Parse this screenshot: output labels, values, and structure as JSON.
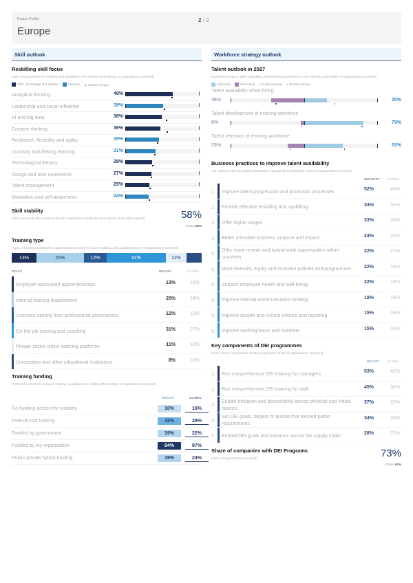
{
  "header": {
    "supertitle": "Region Profile",
    "title": "Europe",
    "page_current": "2",
    "page_sep": " / ",
    "page_total": "2"
  },
  "colors": {
    "skills": "#1e2f5a",
    "attitudes": "#2e86c1",
    "improving": "#9dcbe6",
    "worsening": "#a584b5",
    "accent": "#1e3766"
  },
  "left": {
    "section_title": "Skill outlook",
    "reskilling": {
      "title": "Reskilling skill focus",
      "subtitle": "Skills most prioritized for reskilling and upskilling in the next five years (share of organizations surveyed)",
      "legend": [
        "Skills, knowledge and abilities",
        "Attitudes",
        "Global average"
      ],
      "items": [
        {
          "label": "Analytical thinking",
          "value": 49,
          "type": "skills",
          "global": 48
        },
        {
          "label": "Leadership and social influence",
          "value": 39,
          "type": "attitudes",
          "global": 40
        },
        {
          "label": "AI and big data",
          "value": 38,
          "type": "skills",
          "global": 42
        },
        {
          "label": "Creative thinking",
          "value": 36,
          "type": "skills",
          "global": 43
        },
        {
          "label": "Resilience, flexibility and agility",
          "value": 35,
          "type": "attitudes",
          "global": 33
        },
        {
          "label": "Curiosity and lifelong learning",
          "value": 31,
          "type": "attitudes",
          "global": 30
        },
        {
          "label": "Technological literacy",
          "value": 28,
          "type": "skills",
          "global": 28
        },
        {
          "label": "Design and user experience",
          "value": 27,
          "type": "skills",
          "global": 26
        },
        {
          "label": "Talent management",
          "value": 25,
          "type": "skills",
          "global": 25
        },
        {
          "label": "Motivation and self-awareness",
          "value": 24,
          "type": "attitudes",
          "global": 24
        }
      ]
    },
    "stability": {
      "title": "Skill stability",
      "subtitle": "Skills required by the workforce that are expected to remain the same (share of all skills required)",
      "value": "58%",
      "global_label": "Global",
      "global_value": "56%"
    },
    "training_type": {
      "title": "Training type",
      "subtitle": "Types of training prioritized by organizations surveyed for future reskilling and upskilling (share of organizations surveyed)",
      "segments": [
        {
          "label": "13%",
          "value": 13,
          "color": "#1e2f5a",
          "text": "#ffffff"
        },
        {
          "label": "25%",
          "value": 25,
          "color": "#a9d0ea",
          "text": "#1e3766"
        },
        {
          "label": "12%",
          "value": 12,
          "color": "#2a5a94",
          "text": "#ffffff"
        },
        {
          "label": "31%",
          "value": 31,
          "color": "#2e96d6",
          "text": "#ffffff"
        },
        {
          "label": "11%",
          "value": 11,
          "color": "#e3eef6",
          "text": "#1e3766"
        },
        {
          "label": "",
          "value": 8,
          "color": "#2a4f85",
          "text": "#ffffff"
        }
      ],
      "col_roles": "ROLES",
      "col_region": "REGION",
      "col_global": "GLOBAL",
      "rows": [
        {
          "label": "Employer-sponsored apprenticeships",
          "region": "13%",
          "global": "15%"
        },
        {
          "label": "Internal training departments",
          "region": "25%",
          "global": "24%"
        },
        {
          "label": "Licensed training from professional associations",
          "region": "12%",
          "global": "13%"
        },
        {
          "label": "On-the-job training and coaching",
          "region": "31%",
          "global": "27%"
        },
        {
          "label": "Private-sector online-learning platforms",
          "region": "11%",
          "global": "12%"
        },
        {
          "label": "Universities and other educational institutions",
          "region": "8%",
          "global": "10%"
        }
      ]
    },
    "funding": {
      "title": "Training funding",
      "subtitle": "Preferred sources of funding for training, upskilling and reskilling efforts (share of organizations surveyed)",
      "col_region": "REGION",
      "col_global": "GLOBAL",
      "rows": [
        {
          "label": "Co-funding across the industry",
          "region": "10%",
          "global": "16%",
          "shade": "#c6e0f2",
          "text": "#1e3766"
        },
        {
          "label": "Free-of-cost training",
          "region": "32%",
          "global": "28%",
          "shade": "#6fb2e0",
          "text": "#1e3766"
        },
        {
          "label": "Funded by government",
          "region": "19%",
          "global": "22%",
          "shade": "#b2d6ee",
          "text": "#1e3766"
        },
        {
          "label": "Funded by my organization",
          "region": "94%",
          "global": "87%",
          "shade": "#1e3766",
          "text": "#ffffff"
        },
        {
          "label": "Public-private hybrid funding",
          "region": "19%",
          "global": "24%",
          "shade": "#b2d6ee",
          "text": "#1e3766"
        }
      ]
    }
  },
  "right": {
    "section_title": "Workforce strategy outlook",
    "talent": {
      "title": "Talent outlook in 2027",
      "subtitle": "Expected change in talent availability, development and retention in the next five years (share of organizations surveyed)",
      "legend": [
        "Improving",
        "Worsening",
        "Global average",
        "Global average"
      ],
      "items": [
        {
          "label": "Talent availability when hiring",
          "worsening": 46,
          "improving": 30,
          "worsening_label": "46%",
          "improving_label": "30%",
          "global_worsening": 40,
          "global_improving": 39
        },
        {
          "label": "Talent development of existing workforce",
          "worsening": 6,
          "improving": 79,
          "worsening_label": "6%",
          "improving_label": "79%",
          "global_worsening": 6,
          "global_improving": 77
        },
        {
          "label": "Talent retention of existing workforce",
          "worsening": 23,
          "improving": 51,
          "worsening_label": "23%",
          "improving_label": "51%",
          "global_worsening": 21,
          "global_improving": 53
        }
      ]
    },
    "practices": {
      "title": "Business practices to improve talent availability",
      "subtitle": "Top practices with the greatest potential to improve talent availability (share of organizations surveyed)",
      "col_region": "INDUSTRY",
      "col_global": "GLOBAL",
      "rows": [
        {
          "num": "1.",
          "label": "Improve talent progression and promotion processes",
          "region": "52%",
          "global": "48%"
        },
        {
          "num": "2.",
          "label": "Provide effective reskilling and upskilling",
          "region": "34%",
          "global": "34%"
        },
        {
          "num": "3.",
          "label": "Offer higher wages",
          "region": "33%",
          "global": "35%"
        },
        {
          "num": "4.",
          "label": "Better articulate business purpose and impact",
          "region": "24%",
          "global": "24%"
        },
        {
          "num": "5.",
          "label": "Offer more remote and hybrid work opportunities within countries",
          "region": "22%",
          "global": "21%"
        },
        {
          "num": "6.",
          "label": "More diversity, equity and inclusion policies and programmes",
          "region": "22%",
          "global": "18%"
        },
        {
          "num": "6.",
          "label": "Support employee health and well-being",
          "region": "22%",
          "global": "18%"
        },
        {
          "num": "8.",
          "label": "Improve internal-communication strategy",
          "region": "18%",
          "global": "19%"
        },
        {
          "num": "9.",
          "label": "Improve people-and-culture metrics and reporting",
          "region": "15%",
          "global": "18%"
        },
        {
          "num": "9.",
          "label": "Improve working hours and overtime",
          "region": "15%",
          "global": "15%"
        }
      ]
    },
    "dei": {
      "title": "Key components of DEI programmes",
      "subtitle": "Most common components of DEI programmes (share of organizations surveyed)",
      "col_region": "REGION",
      "col_global": "GLOBAL",
      "rows": [
        {
          "num": "1.",
          "label": "Run comprehensive DEI training for managers",
          "region": "53%",
          "global": "42%"
        },
        {
          "num": "2.",
          "label": "Run comprehensive DEI training for staff",
          "region": "45%",
          "global": "36%"
        },
        {
          "num": "3.",
          "label": "Enable inclusion and accessibility across physical and virtual spaces",
          "region": "37%",
          "global": "33%"
        },
        {
          "num": "4.",
          "label": "Set DEI goals, targets or quotas that exceed public requirements",
          "region": "34%",
          "global": "26%"
        },
        {
          "num": "5.",
          "label": "Embed DEI goals and solutions across the supply chain",
          "region": "28%",
          "global": "23%"
        }
      ]
    },
    "dei_share": {
      "title": "Share of companies with DEI Programs",
      "subtitle": "(share of organizations surveyed)",
      "value": "73%",
      "global_label": "Global",
      "global_value": "67%"
    }
  }
}
